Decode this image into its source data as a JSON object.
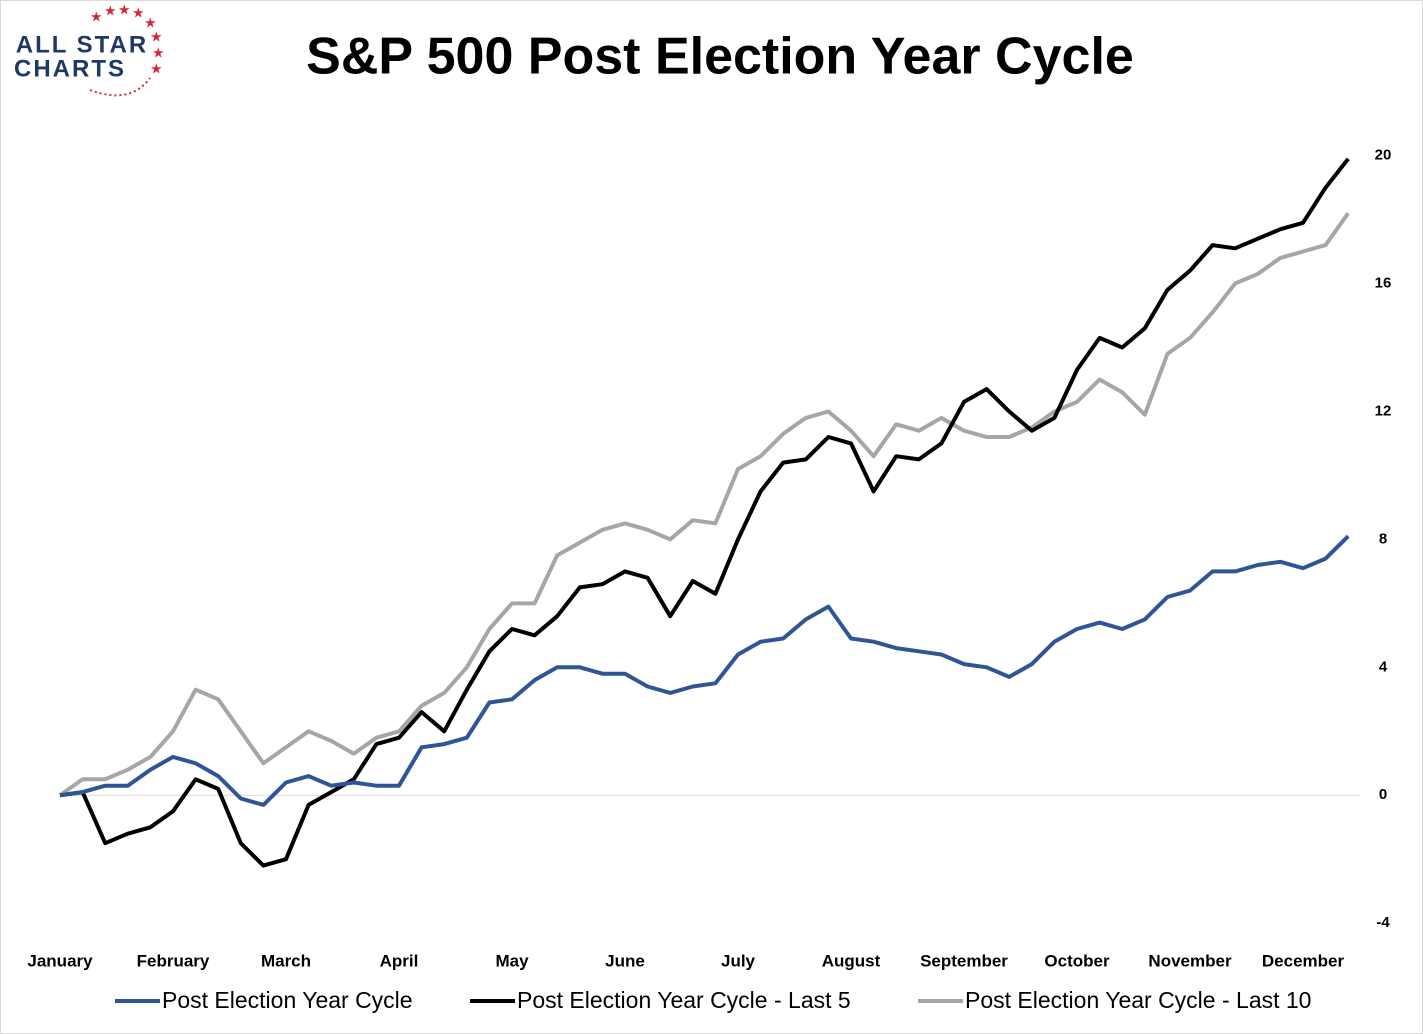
{
  "chart_data": {
    "type": "line",
    "title": "S&P 500 Post Election Year Cycle",
    "logo": [
      "ALL STAR",
      "CHARTS"
    ],
    "categories": [
      "January",
      null,
      null,
      null,
      null,
      "February",
      null,
      null,
      null,
      null,
      "March",
      null,
      null,
      null,
      null,
      "April",
      null,
      null,
      null,
      null,
      "May",
      null,
      null,
      null,
      null,
      "June",
      null,
      null,
      null,
      null,
      "July",
      null,
      null,
      null,
      null,
      "August",
      null,
      null,
      null,
      null,
      "September",
      null,
      null,
      null,
      null,
      "October",
      null,
      null,
      null,
      null,
      "November",
      null,
      null,
      null,
      null,
      "December",
      null,
      null
    ],
    "series": [
      {
        "name": "Post Election Year Cycle",
        "color": "#2f5597",
        "values": [
          0,
          0.1,
          0.3,
          0.3,
          0.8,
          1.2,
          1.0,
          0.6,
          -0.1,
          -0.3,
          0.4,
          0.6,
          0.3,
          0.4,
          0.3,
          0.3,
          1.5,
          1.6,
          1.8,
          2.9,
          3.0,
          3.6,
          4.0,
          4.0,
          3.8,
          3.8,
          3.4,
          3.2,
          3.4,
          3.5,
          4.4,
          4.8,
          4.9,
          5.5,
          5.9,
          4.9,
          4.8,
          4.6,
          4.5,
          4.4,
          4.1,
          4.0,
          3.7,
          4.1,
          4.8,
          5.2,
          5.4,
          5.2,
          5.5,
          6.2,
          6.4,
          7.0,
          7.0,
          7.2,
          7.3,
          7.1,
          7.4,
          8.1
        ]
      },
      {
        "name": "Post Election Year Cycle - Last 5",
        "color": "#000000",
        "values": [
          0,
          0.1,
          -1.5,
          -1.2,
          -1.0,
          -0.5,
          0.5,
          0.2,
          -1.5,
          -2.2,
          -2.0,
          -0.3,
          0.1,
          0.5,
          1.6,
          1.8,
          2.6,
          2.0,
          3.3,
          4.5,
          5.2,
          5.0,
          5.6,
          6.5,
          6.6,
          7.0,
          6.8,
          5.6,
          6.7,
          6.3,
          8.0,
          9.5,
          10.4,
          10.5,
          11.2,
          11.0,
          9.5,
          10.6,
          10.5,
          11.0,
          12.3,
          12.7,
          12.0,
          11.4,
          11.8,
          13.3,
          14.3,
          14.0,
          14.6,
          15.8,
          16.4,
          17.2,
          17.1,
          17.4,
          17.7,
          17.9,
          19.0,
          19.9
        ]
      },
      {
        "name": "Post Election Year Cycle - Last 10",
        "color": "#a6a6a6",
        "values": [
          0,
          0.5,
          0.5,
          0.8,
          1.2,
          2.0,
          3.3,
          3.0,
          2.0,
          1.0,
          1.5,
          2.0,
          1.7,
          1.3,
          1.8,
          2.0,
          2.8,
          3.2,
          4.0,
          5.2,
          6.0,
          6.0,
          7.5,
          7.9,
          8.3,
          8.5,
          8.3,
          8.0,
          8.6,
          8.5,
          10.2,
          10.6,
          11.3,
          11.8,
          12.0,
          11.4,
          10.6,
          11.6,
          11.4,
          11.8,
          11.4,
          11.2,
          11.2,
          11.5,
          12.0,
          12.3,
          13.0,
          12.6,
          11.9,
          13.8,
          14.3,
          15.1,
          16.0,
          16.3,
          16.8,
          17.0,
          17.2,
          18.2
        ]
      }
    ],
    "ylim": [
      -4.4,
      20.8
    ],
    "yticks": [
      -4,
      0,
      4,
      8,
      12,
      16,
      20
    ],
    "grid": false,
    "zero_line": true,
    "legend": "bottom"
  }
}
